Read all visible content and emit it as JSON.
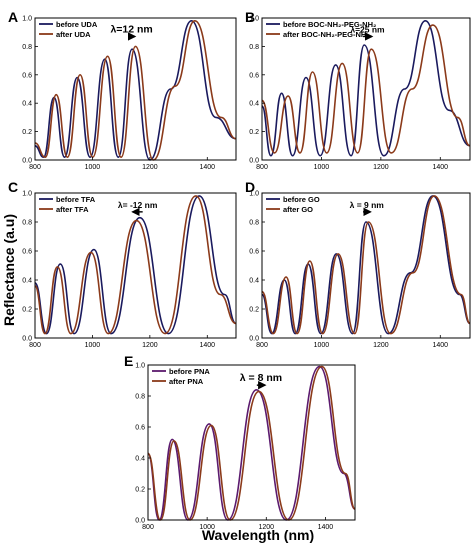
{
  "figure": {
    "ylabel": "Reflectance (a.u)",
    "xlabel": "Wavelength (nm)"
  },
  "chart_data": [
    {
      "panel": "A",
      "type": "line",
      "xlim": [
        800,
        1500
      ],
      "ylim": [
        0,
        1.0
      ],
      "xticks": [
        800,
        1000,
        1200,
        1400
      ],
      "yticks": [
        "0.0",
        "0.2",
        "0.4",
        "0.6",
        "0.8",
        "1.0"
      ],
      "shift_label": "λ=12 nm",
      "shift_big": true,
      "series": [
        {
          "name": "before UDA",
          "color": "#1a1a5e",
          "x": [
            800,
            830,
            866,
            903,
            947,
            992,
            1043,
            1090,
            1138,
            1200,
            1273,
            1345,
            1430,
            1500
          ],
          "y": [
            0.1,
            0.02,
            0.44,
            0.02,
            0.58,
            0.02,
            0.71,
            0.02,
            0.78,
            0.0,
            0.5,
            0.98,
            0.3,
            0.15
          ]
        },
        {
          "name": "after UDA",
          "color": "#8b3a1a",
          "x": [
            800,
            836,
            874,
            913,
            957,
            1001,
            1053,
            1100,
            1150,
            1212,
            1288,
            1357,
            1448,
            1500
          ],
          "y": [
            0.12,
            0.02,
            0.46,
            0.02,
            0.6,
            0.02,
            0.73,
            0.02,
            0.8,
            0.0,
            0.52,
            0.98,
            0.3,
            0.15
          ]
        }
      ],
      "shift_arrow": [
        1125,
        1148
      ]
    },
    {
      "panel": "B",
      "type": "line",
      "xlim": [
        800,
        1500
      ],
      "ylim": [
        0,
        1.0
      ],
      "xticks": [
        800,
        1000,
        1200,
        1400
      ],
      "yticks": [
        "0.0",
        "0.2",
        "0.4",
        "0.6",
        "0.8",
        "1.0"
      ],
      "shift_label": "λ=25 nm",
      "shift_big": false,
      "series": [
        {
          "name": "before BOC-NH₂-PEG-NH₂",
          "color": "#1a1a5e",
          "x": [
            800,
            830,
            866,
            903,
            948,
            996,
            1048,
            1100,
            1144,
            1210,
            1280,
            1350,
            1430,
            1500
          ],
          "y": [
            0.38,
            0.03,
            0.47,
            0.03,
            0.58,
            0.03,
            0.67,
            0.03,
            0.81,
            0.03,
            0.5,
            0.98,
            0.35,
            0.1
          ]
        },
        {
          "name": "after BOC-NH₂-PEG-NH₂",
          "color": "#8b3a1a",
          "x": [
            800,
            842,
            888,
            928,
            970,
            1018,
            1070,
            1122,
            1168,
            1235,
            1305,
            1375,
            1458,
            1500
          ],
          "y": [
            0.42,
            0.05,
            0.45,
            0.05,
            0.62,
            0.05,
            0.68,
            0.05,
            0.78,
            0.05,
            0.5,
            0.95,
            0.3,
            0.1
          ]
        }
      ],
      "shift_arrow": [
        1140,
        1170
      ]
    },
    {
      "panel": "C",
      "type": "line",
      "xlim": [
        800,
        1500
      ],
      "ylim": [
        0,
        1.0
      ],
      "xticks": [
        800,
        1000,
        1200,
        1400
      ],
      "yticks": [
        "0.0",
        "0.2",
        "0.4",
        "0.6",
        "0.8",
        "1.0"
      ],
      "shift_label": "λ= -12 nm",
      "shift_big": false,
      "series": [
        {
          "name": "before TFA",
          "color": "#1a1a5e",
          "x": [
            800,
            840,
            888,
            936,
            1005,
            1065,
            1165,
            1265,
            1372,
            1460,
            1500
          ],
          "y": [
            0.38,
            0.03,
            0.51,
            0.03,
            0.61,
            0.03,
            0.83,
            0.03,
            0.98,
            0.3,
            0.1
          ]
        },
        {
          "name": "after TFA",
          "color": "#8b3a1a",
          "x": [
            800,
            835,
            878,
            925,
            995,
            1055,
            1153,
            1253,
            1360,
            1445,
            1500
          ],
          "y": [
            0.36,
            0.03,
            0.49,
            0.03,
            0.59,
            0.03,
            0.81,
            0.03,
            0.98,
            0.3,
            0.1
          ]
        }
      ],
      "shift_arrow": [
        1175,
        1140
      ]
    },
    {
      "panel": "D",
      "type": "line",
      "xlim": [
        800,
        1500
      ],
      "ylim": [
        0,
        1.0
      ],
      "xticks": [
        800,
        1000,
        1200,
        1400
      ],
      "yticks": [
        "0.0",
        "0.2",
        "0.4",
        "0.6",
        "0.8",
        "1.0"
      ],
      "shift_label": "λ = 9 nm",
      "shift_big": false,
      "series": [
        {
          "name": "before GO",
          "color": "#1a1a5e",
          "x": [
            800,
            833,
            875,
            912,
            955,
            998,
            1050,
            1105,
            1150,
            1225,
            1300,
            1375,
            1465,
            1500
          ],
          "y": [
            0.3,
            0.03,
            0.4,
            0.03,
            0.51,
            0.03,
            0.58,
            0.03,
            0.8,
            0.03,
            0.45,
            0.98,
            0.3,
            0.1
          ]
        },
        {
          "name": "after GO",
          "color": "#8b3a1a",
          "x": [
            800,
            838,
            881,
            918,
            961,
            1004,
            1056,
            1112,
            1158,
            1233,
            1308,
            1380,
            1470,
            1500
          ],
          "y": [
            0.32,
            0.03,
            0.42,
            0.03,
            0.53,
            0.03,
            0.58,
            0.03,
            0.8,
            0.03,
            0.45,
            0.98,
            0.3,
            0.1
          ]
        }
      ],
      "shift_arrow": [
        1140,
        1165
      ]
    },
    {
      "panel": "E",
      "type": "line",
      "xlim": [
        800,
        1500
      ],
      "ylim": [
        0,
        1.0
      ],
      "xticks": [
        800,
        1000,
        1200,
        1400
      ],
      "yticks": [
        "0.0",
        "0.2",
        "0.4",
        "0.6",
        "0.8",
        "1.0"
      ],
      "shift_label": "λ = 8 nm",
      "shift_big": true,
      "series": [
        {
          "name": "before PNA",
          "color": "#5b1a6e",
          "x": [
            800,
            838,
            882,
            935,
            1007,
            1070,
            1167,
            1268,
            1380,
            1462,
            1500
          ],
          "y": [
            0.43,
            0.0,
            0.52,
            0.0,
            0.62,
            0.0,
            0.84,
            0.0,
            0.99,
            0.3,
            0.07
          ]
        },
        {
          "name": "after PNA",
          "color": "#8b3a1a",
          "x": [
            800,
            842,
            888,
            942,
            1014,
            1078,
            1175,
            1276,
            1388,
            1468,
            1500
          ],
          "y": [
            0.43,
            0.0,
            0.51,
            0.0,
            0.61,
            0.0,
            0.83,
            0.0,
            0.99,
            0.3,
            0.07
          ]
        }
      ],
      "shift_arrow": [
        1168,
        1196
      ]
    }
  ]
}
